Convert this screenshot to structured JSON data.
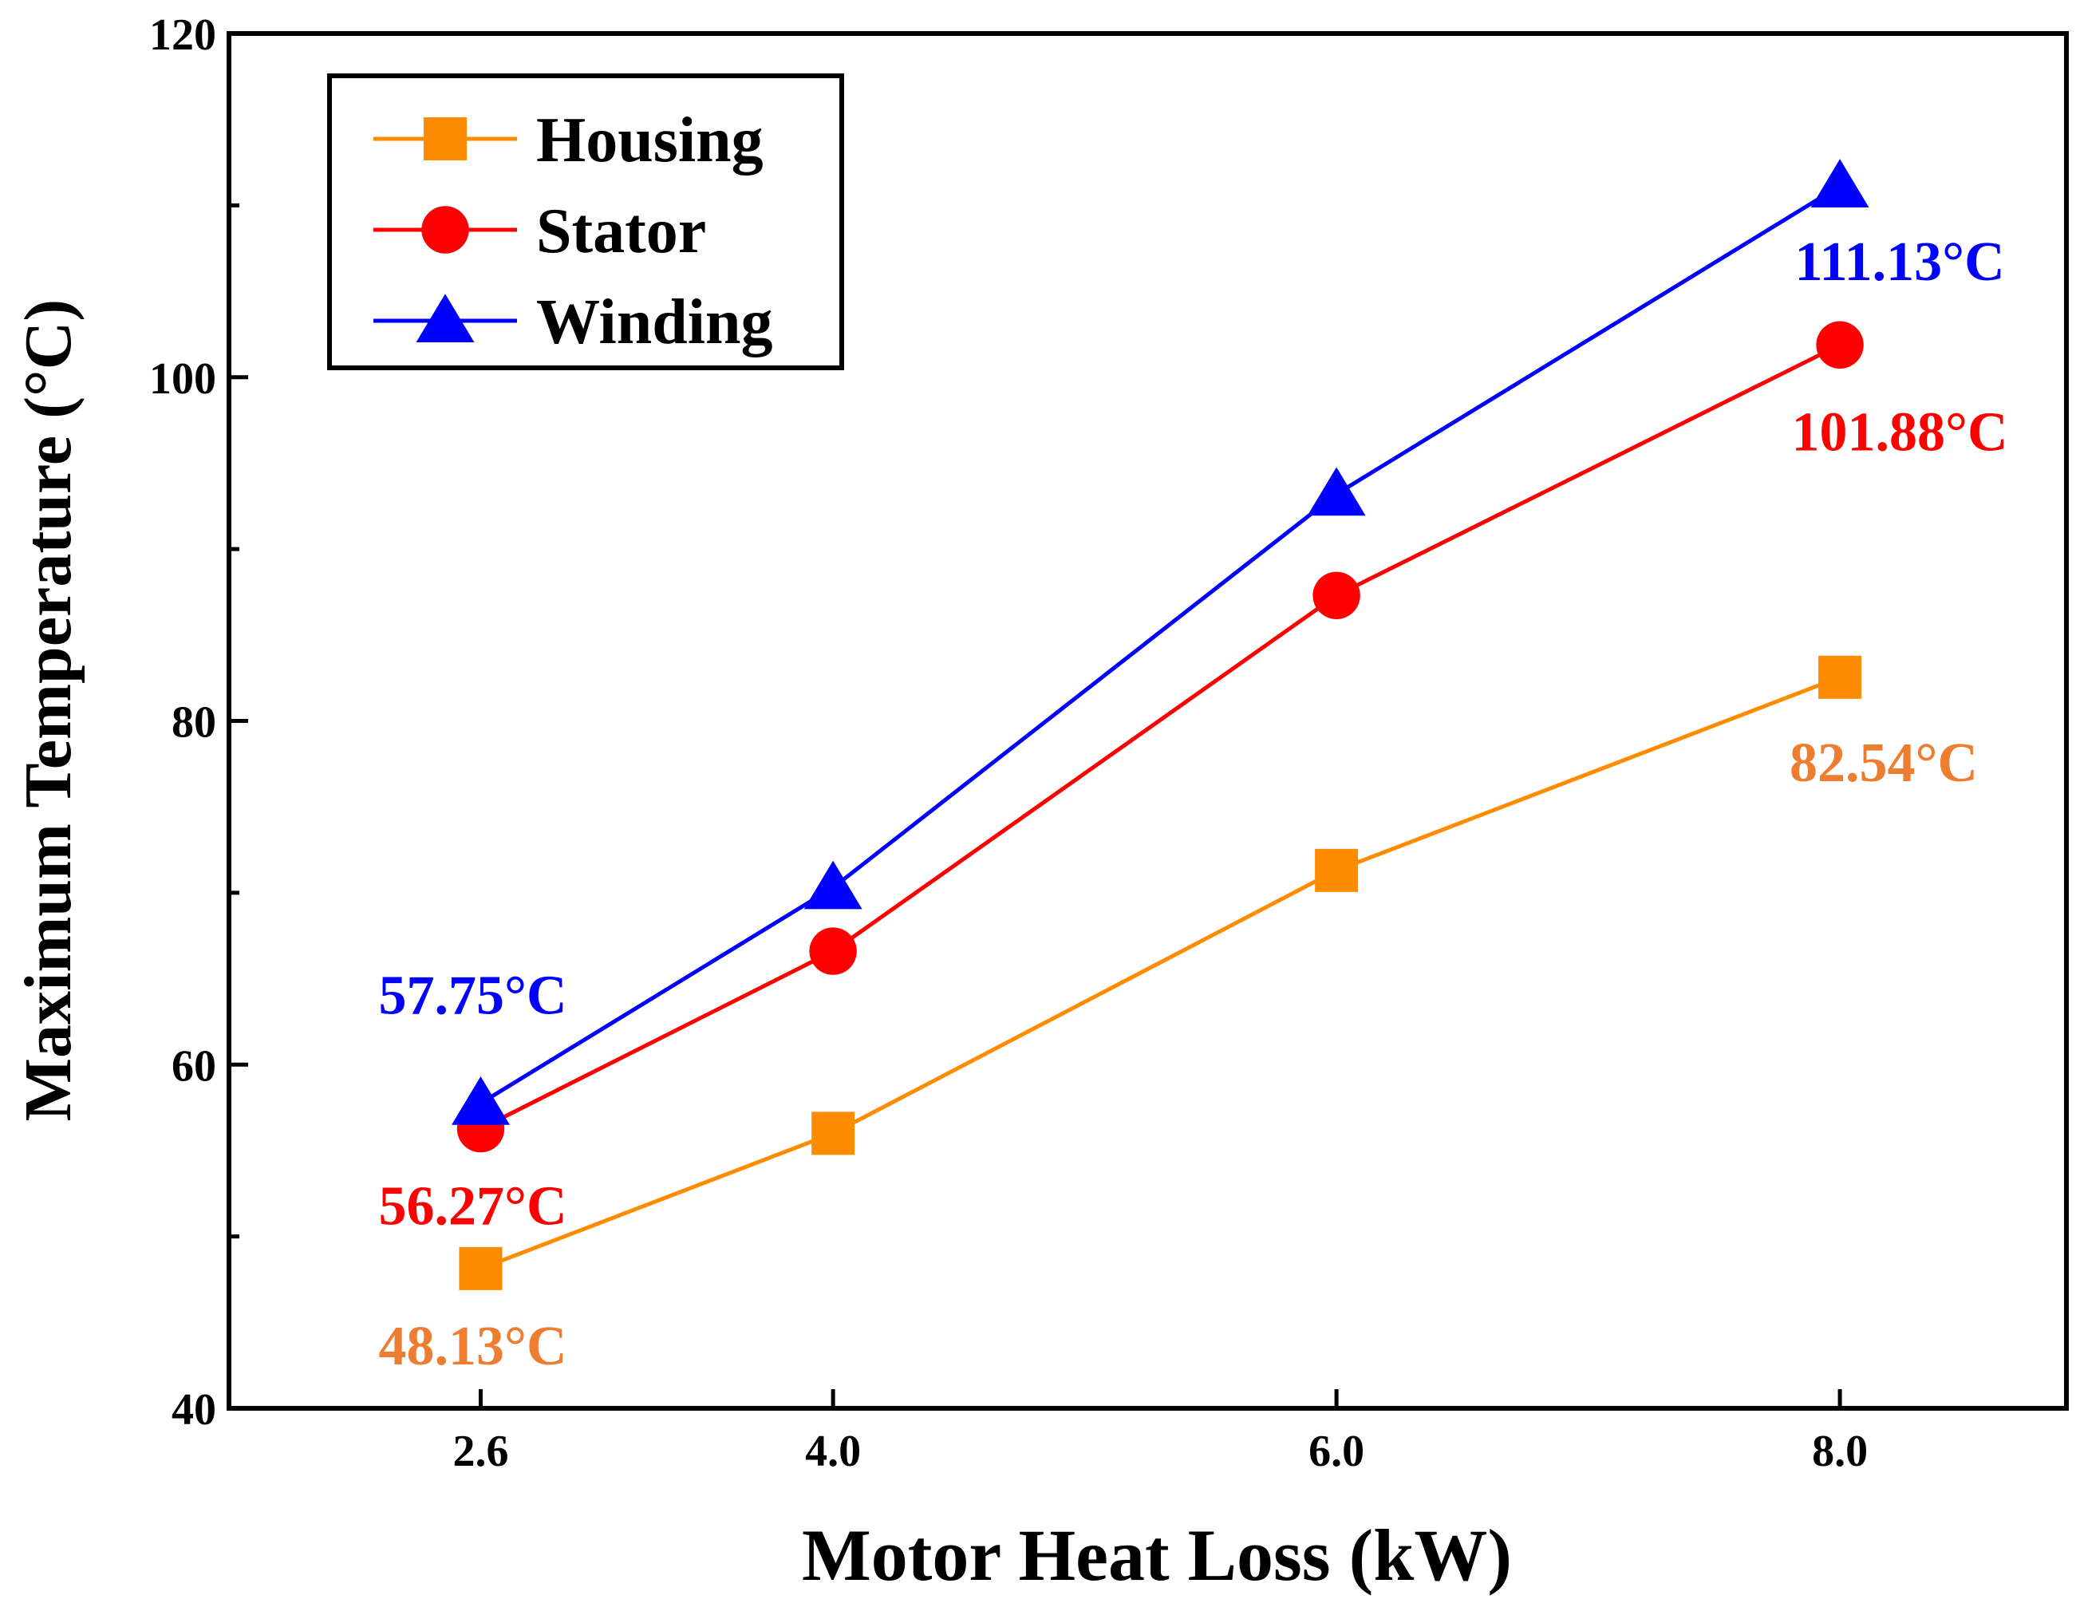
{
  "chart_data": {
    "type": "line",
    "xlabel": "Motor Heat Loss (kW)",
    "ylabel": "Maximum Temperature (°C)",
    "x": [
      2.6,
      4.0,
      6.0,
      8.0
    ],
    "x_tick_labels": [
      "2.6",
      "4.0",
      "6.0",
      "8.0"
    ],
    "y_ticks": [
      40,
      60,
      80,
      100,
      120
    ],
    "y_tick_labels": [
      "40",
      "60",
      "80",
      "100",
      "120"
    ],
    "xlim": [
      1.6,
      8.9
    ],
    "ylim": [
      40,
      120
    ],
    "grid": false,
    "legend_position": "top-left",
    "series": [
      {
        "name": "Housing",
        "color": "#ff8c00",
        "marker": "square",
        "values": [
          48.13,
          56.0,
          71.3,
          82.54
        ]
      },
      {
        "name": "Stator",
        "color": "#ff0000",
        "marker": "circle",
        "values": [
          56.27,
          66.6,
          87.3,
          101.88
        ]
      },
      {
        "name": "Winding",
        "color": "#0000ff",
        "marker": "triangle",
        "values": [
          57.75,
          70.3,
          93.2,
          111.13
        ]
      }
    ],
    "annotations": [
      {
        "text": "57.75°C",
        "color": "#0000ff"
      },
      {
        "text": "56.27°C",
        "color": "#ff0000"
      },
      {
        "text": "48.13°C",
        "color": "#ed7d31"
      },
      {
        "text": "111.13°C",
        "color": "#0000ff"
      },
      {
        "text": "101.88°C",
        "color": "#ff0000"
      },
      {
        "text": "82.54°C",
        "color": "#ed7d31"
      }
    ]
  }
}
